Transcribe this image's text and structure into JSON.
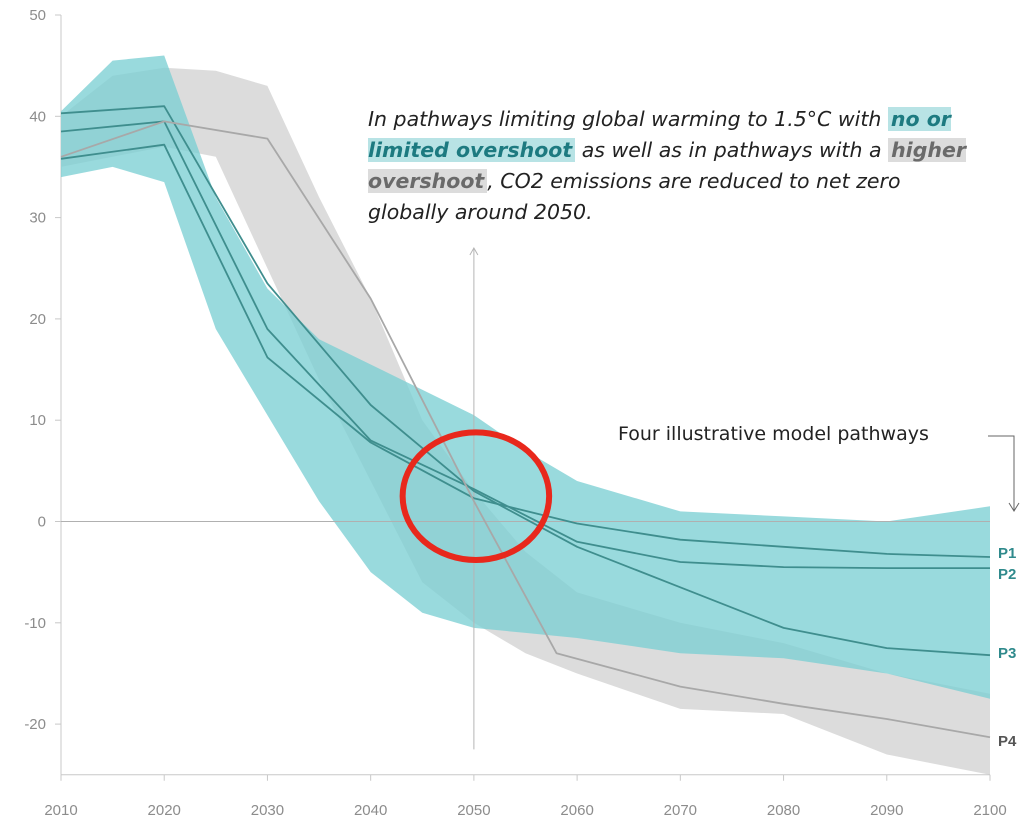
{
  "annotation": {
    "part1": "In pathways limiting global warming to 1.5°C with ",
    "highlight1": "no or limited overshoot",
    "part2": " as well as in pathways with a ",
    "highlight2": "higher overshoot",
    "part3": ", CO2 emissions are reduced to net zero globally around 2050."
  },
  "pathways_label": "Four illustrative model pathways",
  "colors": {
    "teal_band": "#7ccfd4",
    "gray_band": "#dcdcdc",
    "pathway_line": "#3f8e8e",
    "p4_line": "#a8a8a8",
    "teal_label": "#2f8a8c",
    "gray_label": "#555555",
    "circle": "#e8281c",
    "axis": "#c8c8c8"
  },
  "chart_data": {
    "type": "area",
    "title": "",
    "xlabel": "",
    "ylabel": "",
    "xlim": [
      2010,
      2100
    ],
    "ylim": [
      -25,
      50
    ],
    "x_ticks": [
      2010,
      2020,
      2030,
      2040,
      2050,
      2060,
      2070,
      2080,
      2090,
      2100
    ],
    "y_ticks": [
      50,
      40,
      30,
      20,
      10,
      0,
      -10,
      -20
    ],
    "grid": false,
    "bands": [
      {
        "name": "higher overshoot",
        "color": "#dcdcdc",
        "x": [
          2010,
          2015,
          2020,
          2025,
          2030,
          2035,
          2040,
          2045,
          2050,
          2055,
          2060,
          2070,
          2080,
          2090,
          2100
        ],
        "upper": [
          40,
          44,
          44.8,
          44.5,
          43,
          32,
          22,
          10,
          3,
          -3,
          -7,
          -10,
          -12,
          -15,
          -17
        ],
        "lower": [
          35,
          36,
          37,
          36,
          25,
          14,
          4,
          -6,
          -10,
          -13,
          -15,
          -18.5,
          -19,
          -23,
          -25
        ]
      },
      {
        "name": "no or limited overshoot",
        "color": "#7ccfd4",
        "x": [
          2010,
          2015,
          2020,
          2025,
          2030,
          2035,
          2040,
          2045,
          2050,
          2055,
          2060,
          2070,
          2080,
          2090,
          2100
        ],
        "upper": [
          40.5,
          45.5,
          46,
          32,
          23,
          18,
          15.5,
          13,
          10.5,
          7,
          4,
          1,
          0.5,
          0,
          1.5
        ],
        "lower": [
          34,
          35,
          33.5,
          19,
          10.5,
          2,
          -5,
          -9,
          -10.5,
          -11,
          -11.5,
          -13,
          -13.5,
          -15,
          -17.5
        ]
      }
    ],
    "series": [
      {
        "name": "P1",
        "x": [
          2010,
          2020,
          2030,
          2040,
          2050,
          2060,
          2070,
          2080,
          2090,
          2100
        ],
        "values": [
          35.8,
          37.2,
          16.2,
          7.8,
          2.3,
          -0.2,
          -1.8,
          -2.5,
          -3.2,
          -3.5
        ]
      },
      {
        "name": "P2",
        "x": [
          2010,
          2020,
          2030,
          2040,
          2050,
          2060,
          2070,
          2080,
          2090,
          2100
        ],
        "values": [
          38.5,
          39.5,
          19,
          8,
          3.2,
          -2,
          -4,
          -4.5,
          -4.6,
          -4.6
        ]
      },
      {
        "name": "P3",
        "x": [
          2010,
          2020,
          2030,
          2040,
          2050,
          2060,
          2070,
          2080,
          2090,
          2100
        ],
        "values": [
          40.3,
          41,
          23.5,
          11.5,
          3,
          -2.5,
          -6.5,
          -10.5,
          -12.5,
          -13.2
        ]
      },
      {
        "name": "P4",
        "x": [
          2010,
          2020,
          2030,
          2040,
          2050,
          2058,
          2070,
          2080,
          2090,
          2100
        ],
        "values": [
          36,
          39.5,
          37.8,
          22,
          2,
          -13,
          -16.3,
          -18,
          -19.5,
          -21.3
        ]
      }
    ],
    "highlight_circle": {
      "cx": 2050,
      "cy": 2.5,
      "rx": 7,
      "ry": 6.3
    },
    "vertical_marker": {
      "x": 2050,
      "from": -22.5,
      "to": 27
    }
  }
}
